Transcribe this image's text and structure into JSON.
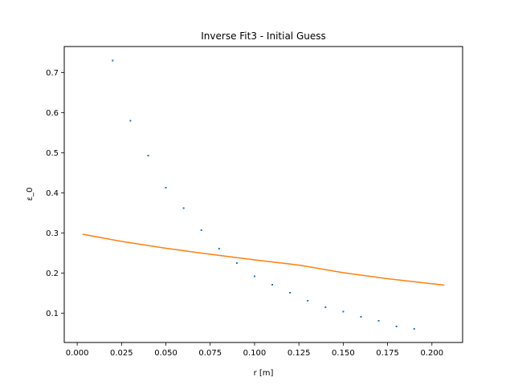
{
  "chart_data": {
    "type": "scatter",
    "title": "Inverse Fit3 - Initial Guess",
    "xlabel": "r [m]",
    "ylabel": "ε_0",
    "xlim": [
      -0.0073,
      0.2173
    ],
    "ylim": [
      0.027,
      0.765
    ],
    "grid": false,
    "x_ticks": [
      0.0,
      0.025,
      0.05,
      0.075,
      0.1,
      0.125,
      0.15,
      0.175,
      0.2
    ],
    "x_tick_labels": [
      "0.000",
      "0.025",
      "0.050",
      "0.075",
      "0.100",
      "0.125",
      "0.150",
      "0.175",
      "0.200"
    ],
    "y_ticks": [
      0.1,
      0.2,
      0.3,
      0.4,
      0.5,
      0.6,
      0.7
    ],
    "y_tick_labels": [
      "0.1",
      "0.2",
      "0.3",
      "0.4",
      "0.5",
      "0.6",
      "0.7"
    ],
    "series": [
      {
        "kind": "scatter",
        "color": "#1f77b4",
        "x": [
          0.02,
          0.03,
          0.04,
          0.05,
          0.06,
          0.07,
          0.08,
          0.09,
          0.1,
          0.11,
          0.12,
          0.13,
          0.14,
          0.15,
          0.16,
          0.17,
          0.18,
          0.19
        ],
        "y": [
          0.73,
          0.58,
          0.493,
          0.413,
          0.362,
          0.307,
          0.261,
          0.225,
          0.192,
          0.171,
          0.151,
          0.131,
          0.115,
          0.104,
          0.091,
          0.081,
          0.067,
          0.061
        ]
      },
      {
        "kind": "line",
        "color": "#ff7f0e",
        "x": [
          0.003,
          0.025,
          0.05,
          0.075,
          0.1,
          0.125,
          0.15,
          0.175,
          0.207
        ],
        "y": [
          0.297,
          0.279,
          0.262,
          0.247,
          0.233,
          0.22,
          0.201,
          0.186,
          0.17
        ]
      }
    ]
  }
}
